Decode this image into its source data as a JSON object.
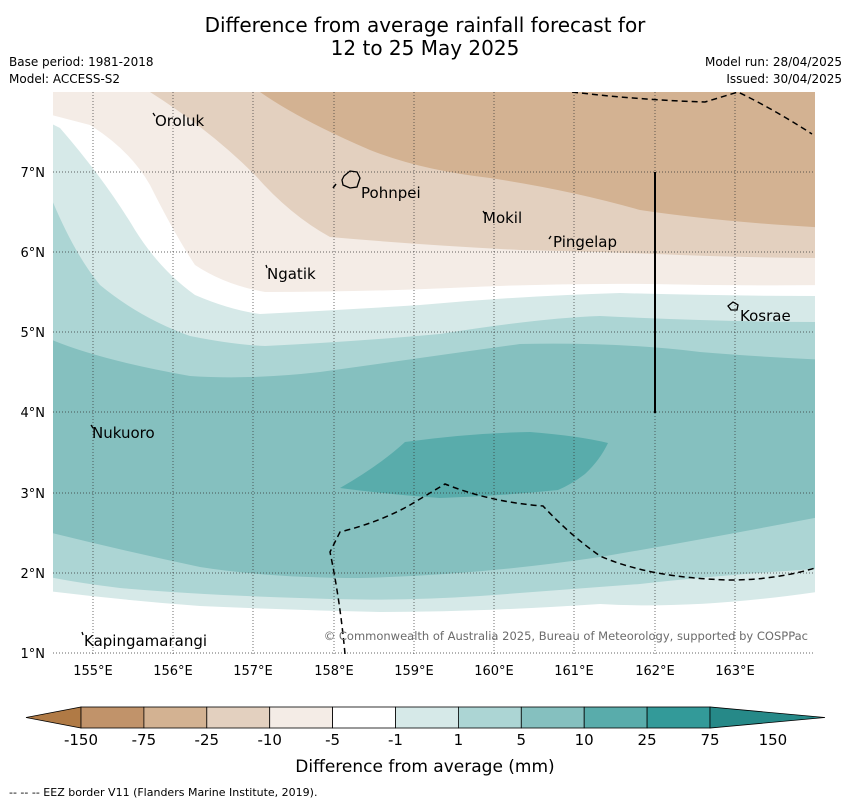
{
  "title_line1": "Difference from average rainfall forecast for",
  "title_line2": "12 to 25 May 2025",
  "meta": {
    "base_period": "Base period: 1981-2018",
    "model": "Model: ACCESS-S2",
    "model_run": "Model run: 28/04/2025",
    "issued": "Issued: 30/04/2025"
  },
  "map": {
    "lon_labels": [
      "155°E",
      "156°E",
      "157°E",
      "158°E",
      "159°E",
      "160°E",
      "161°E",
      "162°E",
      "163°E"
    ],
    "lat_labels": [
      "7°N",
      "6°N",
      "5°N",
      "4°N",
      "3°N",
      "2°N",
      "1°N"
    ],
    "places": {
      "oroluk": "Oroluk",
      "pohnpei": "Pohnpei",
      "mokil": "Mokil",
      "pingelap": "Pingelap",
      "ngatik": "Ngatik",
      "kosrae": "Kosrae",
      "nukuoro": "Nukuoro",
      "kapingamarangi": "Kapingamarangi"
    },
    "copyright": "© Commonwealth of Australia 2025, Bureau of Meteorology, supported by COSPPac"
  },
  "colorbar": {
    "ticks": [
      "-150",
      "-75",
      "-25",
      "-10",
      "-5",
      "-1",
      "1",
      "5",
      "10",
      "25",
      "75",
      "150"
    ],
    "colors": [
      "#b07a45",
      "#c1936a",
      "#d3b292",
      "#e3d0bf",
      "#f4ece6",
      "#ffffff",
      "#d6e9e8",
      "#acd5d4",
      "#85c0bf",
      "#59acab",
      "#339a99",
      "#268988"
    ],
    "label": "Difference from average (mm)"
  },
  "footnote": "--  --  -- EEZ border V11 (Flanders Marine Institute, 2019)."
}
